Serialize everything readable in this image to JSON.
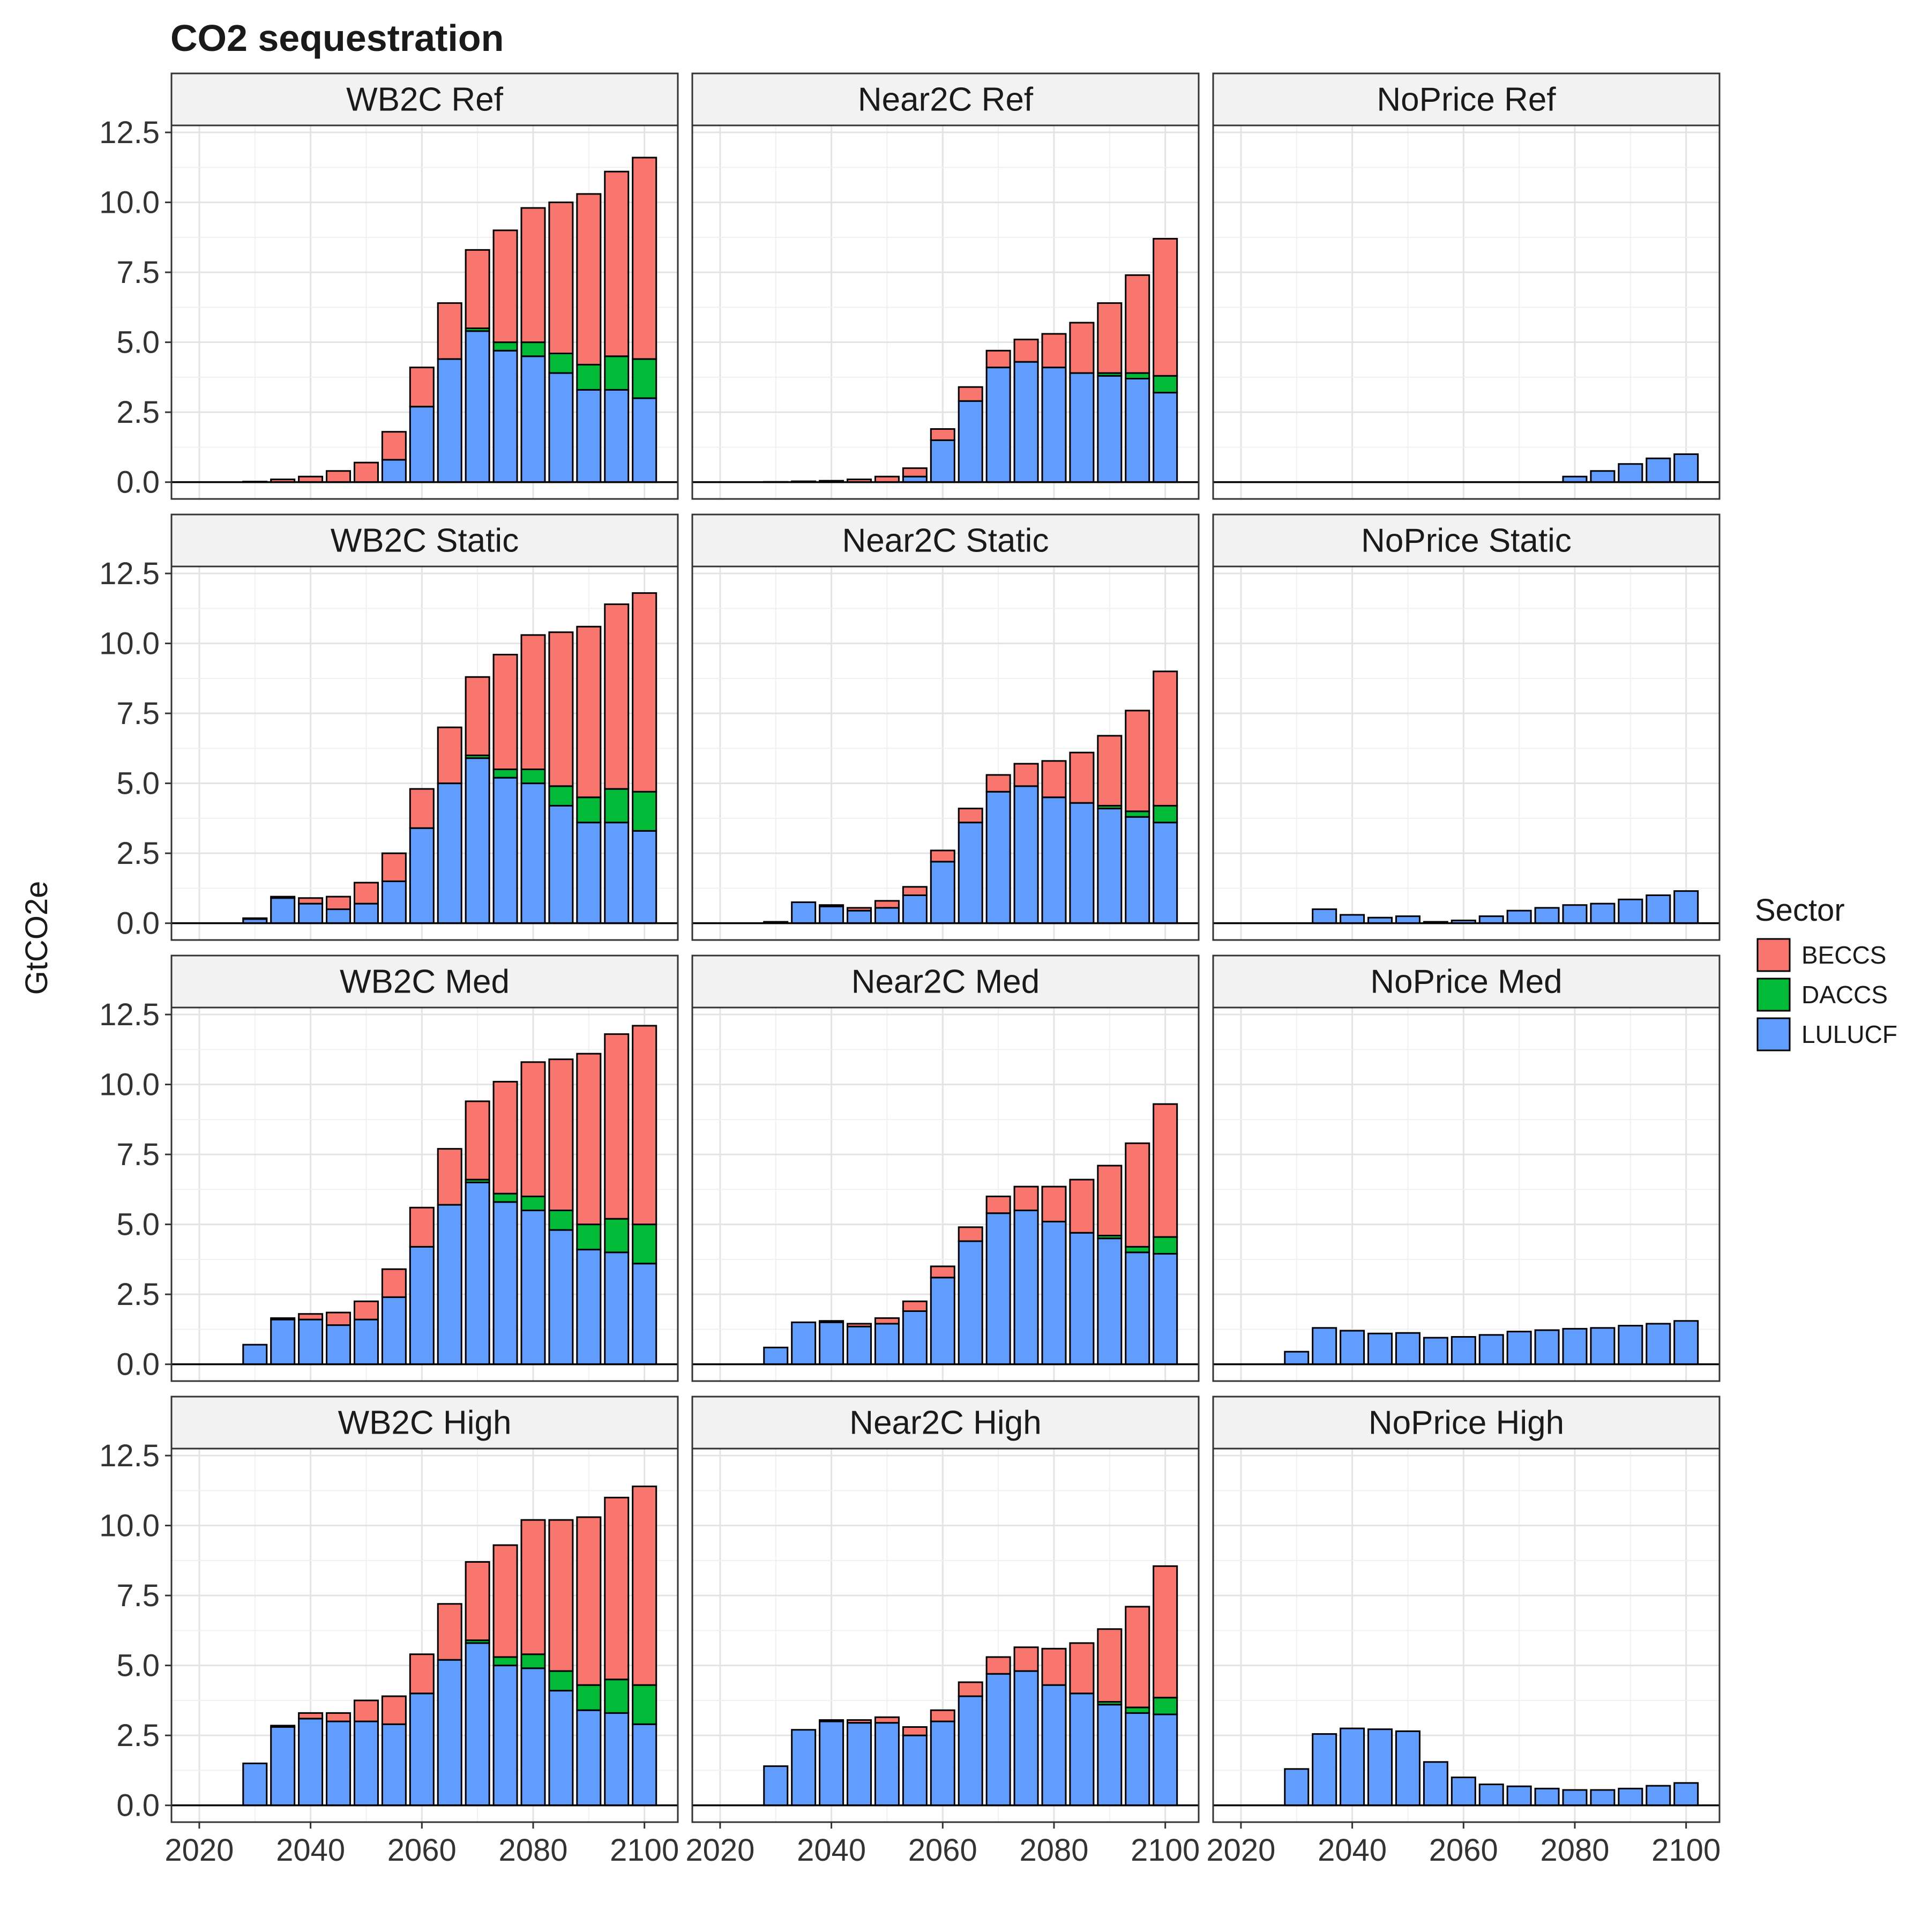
{
  "chart_data": {
    "type": "bar",
    "stacked": true,
    "title": "CO2 sequestration",
    "ylabel": "GtCO2e",
    "xlabel": "",
    "x": [
      2025,
      2030,
      2035,
      2040,
      2045,
      2050,
      2055,
      2060,
      2065,
      2070,
      2075,
      2080,
      2085,
      2090,
      2095,
      2100
    ],
    "x_ticks": [
      "2020",
      "2040",
      "2060",
      "2080",
      "2100"
    ],
    "y_ticks": [
      "0.0",
      "2.5",
      "5.0",
      "7.5",
      "10.0",
      "12.5"
    ],
    "xlim": [
      2015,
      2106
    ],
    "ylim": [
      -0.6,
      12.75
    ],
    "grid": true,
    "legend": {
      "title": "Sector",
      "position": "right",
      "items": [
        {
          "name": "BECCS",
          "color": "#F8766D"
        },
        {
          "name": "DACCS",
          "color": "#00BA38"
        },
        {
          "name": "LULUCF",
          "color": "#619CFF"
        }
      ]
    },
    "panels": [
      {
        "label": "WB2C Ref",
        "LULUCF": [
          0,
          0,
          0,
          0,
          0,
          0,
          0.8,
          2.7,
          4.4,
          5.4,
          4.7,
          4.5,
          3.9,
          3.3,
          3.3,
          3.0
        ],
        "DACCS": [
          0,
          0,
          0,
          0,
          0,
          0,
          0,
          0,
          0,
          0.1,
          0.3,
          0.5,
          0.7,
          0.9,
          1.2,
          1.4
        ],
        "BECCS": [
          0,
          0.02,
          0.1,
          0.2,
          0.4,
          0.7,
          1.0,
          1.4,
          2.0,
          2.8,
          4.0,
          4.8,
          5.4,
          6.1,
          6.6,
          7.2
        ]
      },
      {
        "label": "Near2C Ref",
        "LULUCF": [
          0,
          0,
          0,
          0,
          0,
          0,
          0.2,
          1.5,
          2.9,
          4.1,
          4.3,
          4.1,
          3.9,
          3.8,
          3.7,
          3.2
        ],
        "DACCS": [
          0,
          0,
          0,
          0,
          0,
          0,
          0,
          0,
          0,
          0,
          0,
          0,
          0,
          0.1,
          0.2,
          0.6
        ],
        "BECCS": [
          0,
          0.01,
          0.03,
          0.05,
          0.1,
          0.2,
          0.3,
          0.4,
          0.5,
          0.6,
          0.8,
          1.2,
          1.8,
          2.5,
          3.5,
          4.9
        ]
      },
      {
        "label": "NoPrice Ref",
        "LULUCF": [
          0,
          0,
          0,
          0,
          0,
          0,
          0,
          0,
          0,
          0,
          0,
          0.2,
          0.4,
          0.65,
          0.85,
          1.0
        ],
        "DACCS": [
          0,
          0,
          0,
          0,
          0,
          0,
          0,
          0,
          0,
          0,
          0,
          0,
          0,
          0,
          0,
          0
        ],
        "BECCS": [
          0,
          0,
          0,
          0,
          0,
          0,
          0,
          0,
          0,
          0,
          0,
          0,
          0,
          0,
          0,
          0
        ]
      },
      {
        "label": "WB2C Static",
        "LULUCF": [
          0,
          0.15,
          0.9,
          0.7,
          0.5,
          0.7,
          1.5,
          3.4,
          5.0,
          5.9,
          5.2,
          5.0,
          4.2,
          3.6,
          3.6,
          3.3
        ],
        "DACCS": [
          0,
          0,
          0,
          0,
          0,
          0,
          0,
          0,
          0,
          0.1,
          0.3,
          0.5,
          0.7,
          0.9,
          1.2,
          1.4
        ],
        "BECCS": [
          0,
          0.03,
          0.05,
          0.2,
          0.45,
          0.75,
          1.0,
          1.4,
          2.0,
          2.8,
          4.1,
          4.8,
          5.5,
          6.1,
          6.6,
          7.1
        ]
      },
      {
        "label": "Near2C Static",
        "LULUCF": [
          0,
          0.05,
          0.75,
          0.6,
          0.45,
          0.55,
          1.0,
          2.2,
          3.6,
          4.7,
          4.9,
          4.5,
          4.3,
          4.1,
          3.8,
          3.6
        ],
        "DACCS": [
          0,
          0,
          0,
          0,
          0,
          0,
          0,
          0,
          0,
          0,
          0,
          0,
          0,
          0.1,
          0.2,
          0.6
        ],
        "BECCS": [
          0,
          0,
          0,
          0.05,
          0.1,
          0.25,
          0.3,
          0.4,
          0.5,
          0.6,
          0.8,
          1.3,
          1.8,
          2.5,
          3.6,
          4.8
        ]
      },
      {
        "label": "NoPrice Static",
        "LULUCF": [
          0,
          0,
          0.5,
          0.3,
          0.2,
          0.25,
          0.05,
          0.1,
          0.25,
          0.45,
          0.55,
          0.65,
          0.7,
          0.85,
          1.0,
          1.15
        ],
        "DACCS": [
          0,
          0,
          0,
          0,
          0,
          0,
          0,
          0,
          0,
          0,
          0,
          0,
          0,
          0,
          0,
          0
        ],
        "BECCS": [
          0,
          0,
          0,
          0,
          0,
          0,
          0,
          0,
          0,
          0,
          0,
          0,
          0,
          0,
          0,
          0
        ]
      },
      {
        "label": "WB2C Med",
        "LULUCF": [
          0,
          0.7,
          1.6,
          1.6,
          1.4,
          1.6,
          2.4,
          4.2,
          5.7,
          6.5,
          5.8,
          5.5,
          4.8,
          4.1,
          4.0,
          3.6
        ],
        "DACCS": [
          0,
          0,
          0,
          0,
          0,
          0,
          0,
          0,
          0,
          0.1,
          0.3,
          0.5,
          0.7,
          0.9,
          1.2,
          1.4
        ],
        "BECCS": [
          0,
          0,
          0.05,
          0.2,
          0.45,
          0.65,
          1.0,
          1.4,
          2.0,
          2.8,
          4.0,
          4.8,
          5.4,
          6.1,
          6.6,
          7.1
        ]
      },
      {
        "label": "Near2C Med",
        "LULUCF": [
          0,
          0.6,
          1.5,
          1.5,
          1.35,
          1.45,
          1.9,
          3.1,
          4.4,
          5.4,
          5.5,
          5.1,
          4.7,
          4.5,
          4.0,
          3.95
        ],
        "DACCS": [
          0,
          0,
          0,
          0,
          0,
          0,
          0,
          0,
          0,
          0,
          0,
          0,
          0,
          0.1,
          0.2,
          0.6
        ],
        "BECCS": [
          0,
          0,
          0,
          0.05,
          0.1,
          0.2,
          0.35,
          0.4,
          0.5,
          0.6,
          0.85,
          1.25,
          1.9,
          2.5,
          3.7,
          4.75
        ]
      },
      {
        "label": "NoPrice Med",
        "LULUCF": [
          0,
          0.45,
          1.3,
          1.2,
          1.1,
          1.12,
          0.95,
          0.98,
          1.05,
          1.17,
          1.22,
          1.27,
          1.3,
          1.38,
          1.45,
          1.55
        ],
        "DACCS": [
          0,
          0,
          0,
          0,
          0,
          0,
          0,
          0,
          0,
          0,
          0,
          0,
          0,
          0,
          0,
          0
        ],
        "BECCS": [
          0,
          0,
          0,
          0,
          0,
          0,
          0,
          0,
          0,
          0,
          0,
          0,
          0,
          0,
          0,
          0
        ]
      },
      {
        "label": "WB2C High",
        "LULUCF": [
          0,
          1.5,
          2.8,
          3.1,
          3.0,
          3.0,
          2.9,
          4.0,
          5.2,
          5.8,
          5.0,
          4.9,
          4.1,
          3.4,
          3.3,
          2.9
        ],
        "DACCS": [
          0,
          0,
          0,
          0,
          0,
          0,
          0,
          0,
          0,
          0.1,
          0.3,
          0.5,
          0.7,
          0.9,
          1.2,
          1.4
        ],
        "BECCS": [
          0,
          0,
          0.05,
          0.2,
          0.3,
          0.75,
          1.0,
          1.4,
          2.0,
          2.8,
          4.0,
          4.8,
          5.4,
          6.0,
          6.5,
          7.1
        ]
      },
      {
        "label": "Near2C High",
        "LULUCF": [
          0,
          1.4,
          2.7,
          3.0,
          2.95,
          2.95,
          2.5,
          3.0,
          3.9,
          4.7,
          4.8,
          4.3,
          4.0,
          3.6,
          3.3,
          3.25
        ],
        "DACCS": [
          0,
          0,
          0,
          0,
          0,
          0,
          0,
          0,
          0,
          0,
          0,
          0,
          0,
          0.1,
          0.2,
          0.6
        ],
        "BECCS": [
          0,
          0,
          0,
          0.05,
          0.1,
          0.2,
          0.3,
          0.4,
          0.5,
          0.6,
          0.85,
          1.3,
          1.8,
          2.6,
          3.6,
          4.7
        ]
      },
      {
        "label": "NoPrice High",
        "LULUCF": [
          0,
          1.3,
          2.55,
          2.75,
          2.72,
          2.65,
          1.55,
          1.0,
          0.75,
          0.68,
          0.6,
          0.55,
          0.55,
          0.6,
          0.7,
          0.8
        ],
        "DACCS": [
          0,
          0,
          0,
          0,
          0,
          0,
          0,
          0,
          0,
          0,
          0,
          0,
          0,
          0,
          0,
          0
        ],
        "BECCS": [
          0,
          0,
          0,
          0,
          0,
          0,
          0,
          0,
          0,
          0,
          0,
          0,
          0,
          0,
          0,
          0
        ]
      }
    ]
  }
}
